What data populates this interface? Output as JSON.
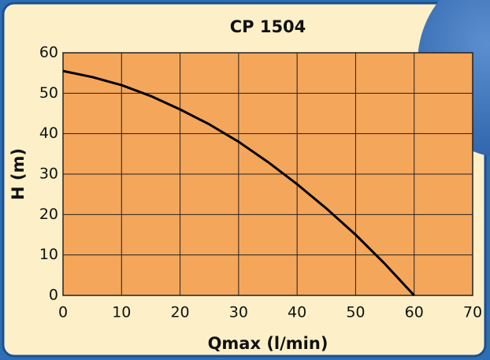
{
  "chart_data": {
    "type": "line",
    "title": "CP 1504",
    "xlabel": "Qmax (l/min)",
    "ylabel": "H (m)",
    "x": [
      0,
      5,
      10,
      15,
      20,
      25,
      30,
      35,
      40,
      45,
      50,
      55,
      60
    ],
    "series": [
      {
        "color": "#000000",
        "values": [
          55.5,
          54,
          52,
          49.3,
          46,
          42.3,
          38,
          33,
          27.5,
          21.5,
          15,
          7.8,
          0
        ]
      }
    ],
    "xlim": [
      0,
      70
    ],
    "ylim": [
      0,
      60
    ],
    "xticks": [
      0,
      10,
      20,
      30,
      40,
      50,
      60,
      70
    ],
    "yticks": [
      0,
      10,
      20,
      30,
      40,
      50,
      60
    ],
    "grid": true,
    "plot_background": "#f4a65a"
  }
}
